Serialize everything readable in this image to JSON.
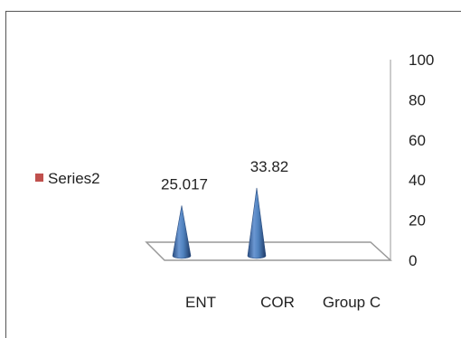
{
  "chart_data": {
    "type": "bar",
    "style": "3d-cone",
    "categories": [
      "ENT",
      "COR",
      "Group C"
    ],
    "series": [
      {
        "name": "Series2",
        "values": [
          25.017,
          33.82,
          null
        ]
      }
    ],
    "data_labels": [
      "25.017",
      "33.82",
      ""
    ],
    "ylim": [
      0,
      100
    ],
    "y_ticks": [
      0,
      20,
      40,
      60,
      80,
      100
    ],
    "y_axis_position": "right",
    "legend": {
      "position": "left",
      "entries": [
        "Series2"
      ]
    },
    "colors": {
      "series": "#4f81bd",
      "legend_swatch": "#c0504d",
      "axis": "#999999"
    }
  }
}
